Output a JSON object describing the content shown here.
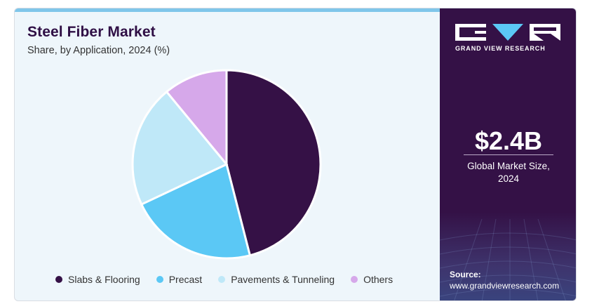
{
  "header": {
    "title": "Steel Fiber Market",
    "subtitle": "Share, by Application, 2024 (%)"
  },
  "brand": {
    "name": "GRAND VIEW RESEARCH"
  },
  "summary": {
    "value": "$2.4B",
    "label_line1": "Global Market Size,",
    "label_line2": "2024"
  },
  "source": {
    "label": "Source:",
    "url": "www.grandviewresearch.com"
  },
  "colors": {
    "panel": "#341146",
    "accent_bar": "#7fc6ea",
    "background": "#eef6fb"
  },
  "chart_data": {
    "type": "pie",
    "title": "Steel Fiber Market",
    "subtitle": "Share, by Application, 2024 (%)",
    "legend_position": "bottom",
    "series": [
      {
        "name": "Slabs & Flooring",
        "value": 46,
        "color": "#351146"
      },
      {
        "name": "Precast",
        "value": 22,
        "color": "#5bc8f5"
      },
      {
        "name": "Pavements & Tunneling",
        "value": 21,
        "color": "#bfe8f8"
      },
      {
        "name": "Others",
        "value": 11,
        "color": "#d6a8ea"
      }
    ]
  }
}
